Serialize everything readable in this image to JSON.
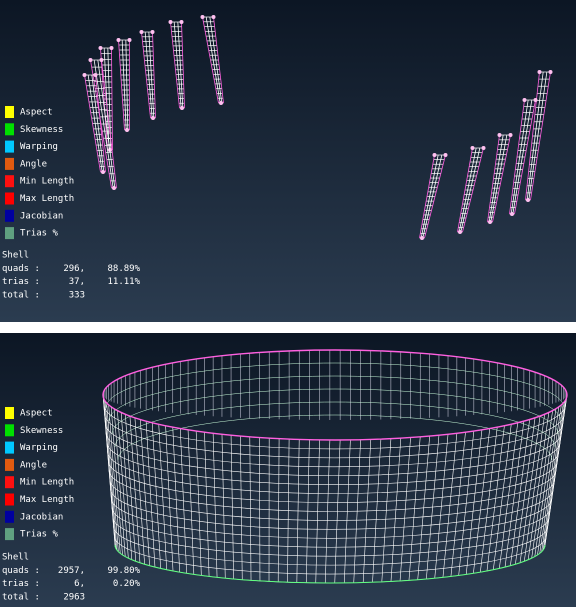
{
  "panels": [
    {
      "legend": [
        {
          "label": "Aspect",
          "color": "#ffff00"
        },
        {
          "label": "Skewness",
          "color": "#00e000"
        },
        {
          "label": "Warping",
          "color": "#00c8ff"
        },
        {
          "label": "Angle",
          "color": "#e05a10"
        },
        {
          "label": "Min Length",
          "color": "#ff1010"
        },
        {
          "label": "Max Length",
          "color": "#ff0000"
        },
        {
          "label": "Jacobian",
          "color": "#0000a0"
        },
        {
          "label": "Trias %",
          "color": "#5fa080"
        }
      ],
      "stats": {
        "title": "Shell",
        "rows": [
          [
            "quads :",
            "296,",
            "88.89%"
          ],
          [
            "trias :",
            "37,",
            "11.11%"
          ],
          [
            "total :",
            "333",
            ""
          ]
        ]
      }
    },
    {
      "legend": [
        {
          "label": "Aspect",
          "color": "#ffff00"
        },
        {
          "label": "Skewness",
          "color": "#00e000"
        },
        {
          "label": "Warping",
          "color": "#00c8ff"
        },
        {
          "label": "Angle",
          "color": "#e05a10"
        },
        {
          "label": "Min Length",
          "color": "#ff1010"
        },
        {
          "label": "Max Length",
          "color": "#ff0000"
        },
        {
          "label": "Jacobian",
          "color": "#0000a0"
        },
        {
          "label": "Trias %",
          "color": "#5fa080"
        }
      ],
      "stats": {
        "title": "Shell",
        "rows": [
          [
            "quads :",
            "2957,",
            "99.80%"
          ],
          [
            "trias :",
            "6,",
            "0.20%"
          ],
          [
            "total :",
            "2963",
            ""
          ]
        ]
      }
    }
  ]
}
